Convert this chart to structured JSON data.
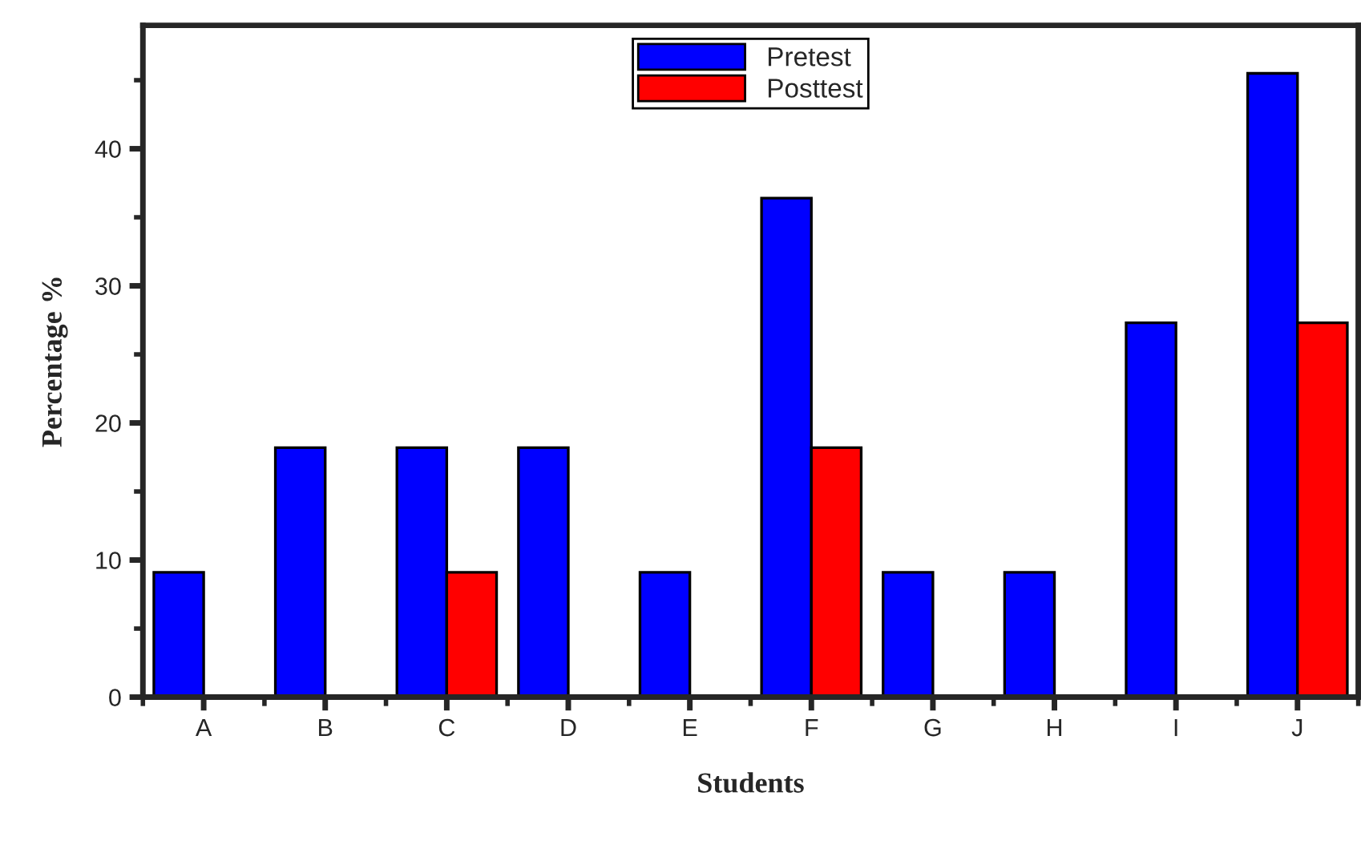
{
  "chart_data": {
    "type": "bar",
    "xlabel": "Students",
    "ylabel": "Percentage %",
    "categories": [
      "A",
      "B",
      "C",
      "D",
      "E",
      "F",
      "G",
      "H",
      "I",
      "J"
    ],
    "series": [
      {
        "name": "Pretest",
        "color": "#0000ff",
        "values": [
          9.1,
          18.2,
          18.2,
          18.2,
          9.1,
          36.4,
          9.1,
          9.1,
          27.3,
          45.5
        ]
      },
      {
        "name": "Posttest",
        "color": "#ff0000",
        "values": [
          null,
          null,
          9.1,
          null,
          null,
          18.2,
          null,
          null,
          null,
          27.3
        ]
      }
    ],
    "ylim": [
      0,
      49
    ],
    "yticks": [
      0,
      10,
      20,
      30,
      40
    ],
    "grid": false,
    "legend": "top"
  }
}
